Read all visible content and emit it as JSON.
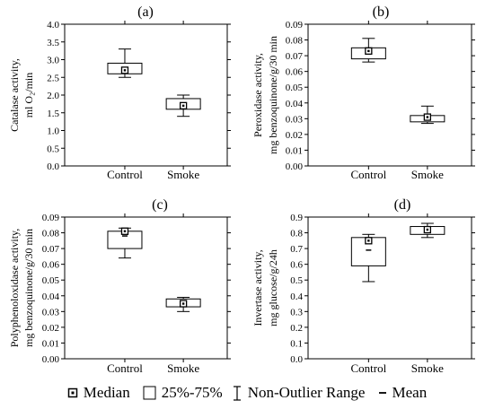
{
  "chart_data": [
    {
      "type": "box",
      "panel_label": "(a)",
      "ylabel_lines": [
        "Catalase activity,",
        "ml O₂/min"
      ],
      "ylim": [
        0,
        4
      ],
      "yticks": [
        "0.0",
        "0.5",
        "1.0",
        "1.5",
        "2.0",
        "2.5",
        "3.0",
        "3.5",
        "4.0"
      ],
      "categories": [
        "Control",
        "Smoke"
      ],
      "boxes": [
        {
          "median": 2.7,
          "q1": 2.6,
          "q3": 2.9,
          "min": 2.5,
          "max": 3.3,
          "mean": 2.75
        },
        {
          "median": 1.7,
          "q1": 1.6,
          "q3": 1.9,
          "min": 1.4,
          "max": 2.0,
          "mean": 1.75
        }
      ]
    },
    {
      "type": "box",
      "panel_label": "(b)",
      "ylabel_lines": [
        "Peroxidase activity,",
        "mg benzoquinone/g/30 min"
      ],
      "ylim": [
        0,
        0.09
      ],
      "yticks": [
        "0.00",
        "0.01",
        "0.02",
        "0.03",
        "0.04",
        "0.05",
        "0.06",
        "0.07",
        "0.08",
        "0.09"
      ],
      "categories": [
        "Control",
        "Smoke"
      ],
      "boxes": [
        {
          "median": 0.073,
          "q1": 0.068,
          "q3": 0.075,
          "min": 0.066,
          "max": 0.081,
          "mean": 0.072
        },
        {
          "median": 0.031,
          "q1": 0.028,
          "q3": 0.032,
          "min": 0.027,
          "max": 0.038,
          "mean": 0.03
        }
      ]
    },
    {
      "type": "box",
      "panel_label": "(c)",
      "ylabel_lines": [
        "Polyphenoloxidase activity,",
        "mg benzoquinone/g/30 min"
      ],
      "ylim": [
        0,
        0.09
      ],
      "yticks": [
        "0.00",
        "0.01",
        "0.02",
        "0.03",
        "0.04",
        "0.05",
        "0.06",
        "0.07",
        "0.08",
        "0.09"
      ],
      "categories": [
        "Control",
        "Smoke"
      ],
      "boxes": [
        {
          "median": 0.081,
          "q1": 0.07,
          "q3": 0.081,
          "min": 0.064,
          "max": 0.083,
          "mean": 0.078
        },
        {
          "median": 0.035,
          "q1": 0.033,
          "q3": 0.038,
          "min": 0.03,
          "max": 0.039,
          "mean": 0.036
        }
      ]
    },
    {
      "type": "box",
      "panel_label": "(d)",
      "ylabel_lines": [
        "Invertase activity,",
        "mg glucose/g/24h"
      ],
      "ylim": [
        0,
        0.9
      ],
      "yticks": [
        "0.0",
        "0.1",
        "0.2",
        "0.3",
        "0.4",
        "0.5",
        "0.6",
        "0.7",
        "0.8",
        "0.9"
      ],
      "categories": [
        "Control",
        "Smoke"
      ],
      "boxes": [
        {
          "median": 0.75,
          "q1": 0.59,
          "q3": 0.77,
          "min": 0.49,
          "max": 0.79,
          "mean": 0.69
        },
        {
          "median": 0.82,
          "q1": 0.79,
          "q3": 0.84,
          "min": 0.77,
          "max": 0.86,
          "mean": 0.81
        }
      ]
    }
  ],
  "legend": {
    "median": "Median",
    "box": "25%-75%",
    "range": "Non-Outlier Range",
    "mean": "Mean"
  }
}
